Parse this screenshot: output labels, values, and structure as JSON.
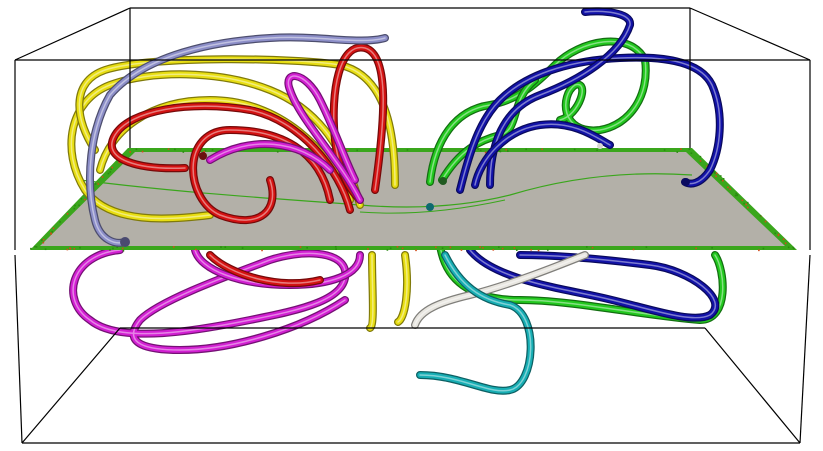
{
  "scene": {
    "kind": "3d-field-line-visualization",
    "background_color": "#ffffff",
    "box_edge_color": "#000000",
    "plane": {
      "fill_color": "#b3b0a8",
      "edge_color": "#3aa61c",
      "speckle_color": "#d24a1a"
    },
    "tube_colors": {
      "yellow": "#e8de12",
      "lavender": "#8c8ec8",
      "red": "#d41212",
      "magenta": "#d21fd2",
      "green": "#22c81e",
      "blue": "#1212a8",
      "cyan": "#17aeb4",
      "white": "#e8e6e0"
    },
    "tube_count": 14
  }
}
